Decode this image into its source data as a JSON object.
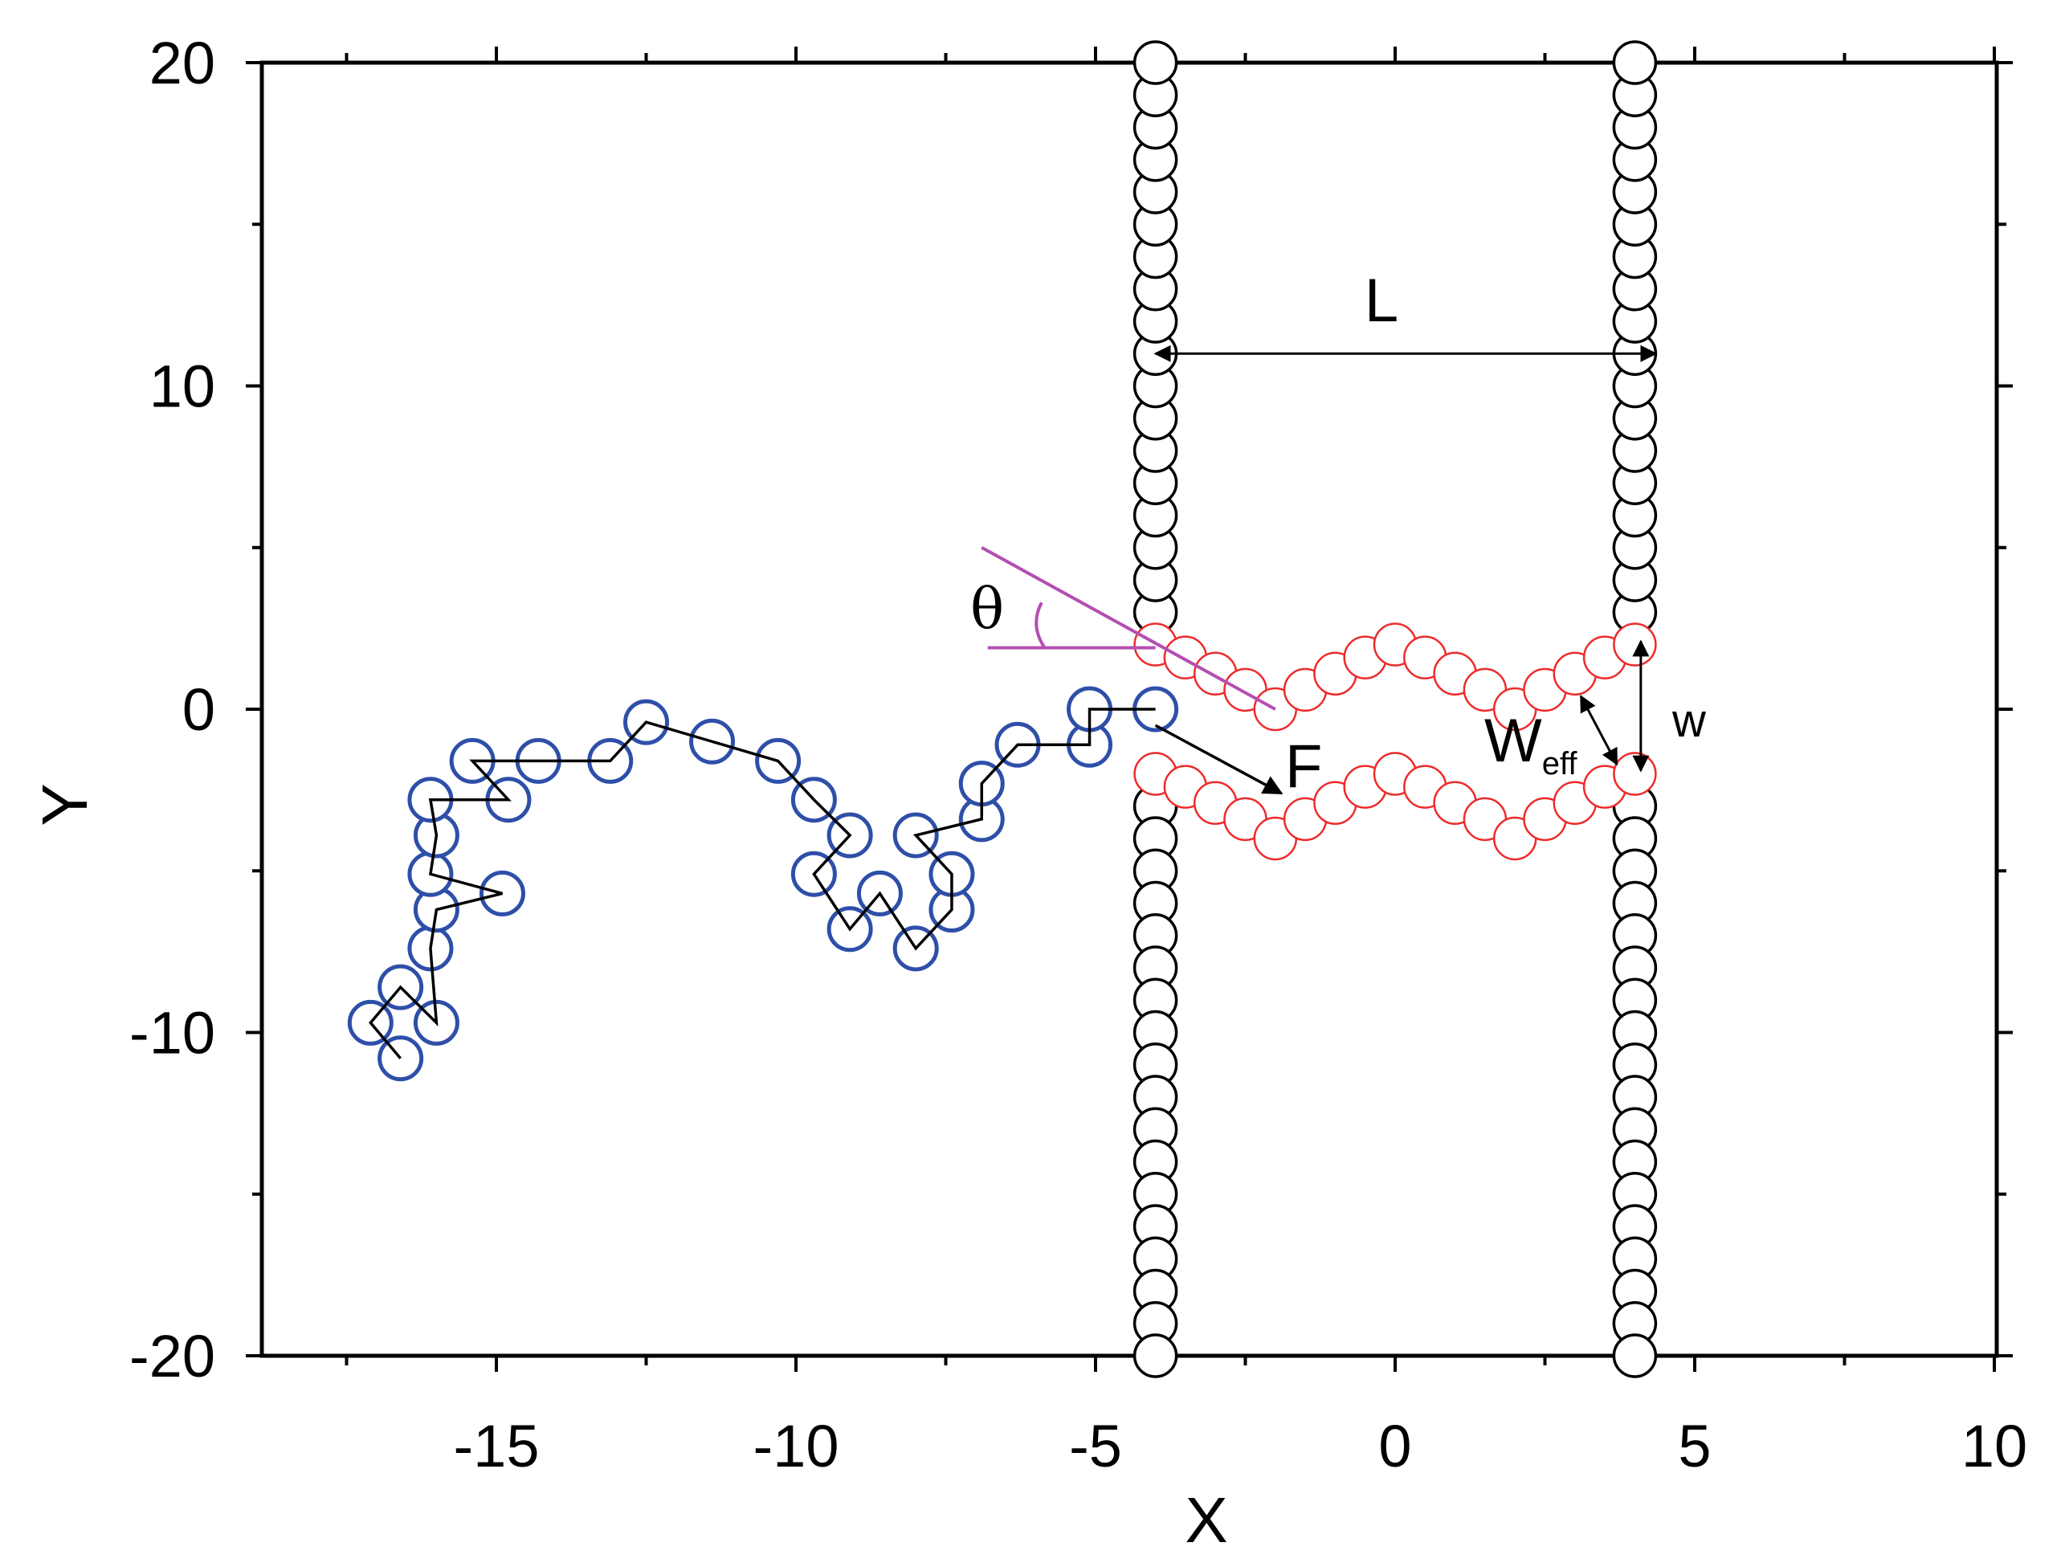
{
  "chart_data": {
    "type": "scatter",
    "xlabel": "X",
    "ylabel": "Y",
    "xlim": [
      -19,
      10
    ],
    "ylim": [
      -20,
      20
    ],
    "x_ticks": [
      "-15",
      "-10",
      "-5",
      "0",
      "5",
      "10"
    ],
    "y_ticks": [
      "20",
      "10",
      "0",
      "-10",
      "-20"
    ],
    "x_tick_values": [
      -15,
      -10,
      -5,
      0,
      5,
      10
    ],
    "y_tick_values": [
      20,
      10,
      0,
      -10,
      -20
    ],
    "grid": false,
    "colors": {
      "polymer": "#2e4fa8",
      "channel": "#ee2a2a",
      "wall": "#000000",
      "angle": "#b44fb0"
    },
    "walls": {
      "left_x": -4,
      "right_x": 4,
      "upper_y": [
        3,
        4,
        5,
        6,
        7,
        8,
        9,
        10,
        11,
        12,
        13,
        14,
        15,
        16,
        17,
        18,
        19,
        20
      ],
      "lower_y": [
        -3,
        -4,
        -5,
        -6,
        -7,
        -8,
        -9,
        -10,
        -11,
        -12,
        -13,
        -14,
        -15,
        -16,
        -17,
        -18,
        -19,
        -20
      ]
    },
    "series": [
      {
        "points": [
          [
            -16.6,
            -10.8
          ],
          [
            -17.1,
            -9.7
          ],
          [
            -16.6,
            -8.6
          ],
          [
            -16.0,
            -9.7
          ],
          [
            -16.1,
            -7.4
          ],
          [
            -16.0,
            -6.2
          ],
          [
            -14.9,
            -5.7
          ],
          [
            -16.1,
            -5.1
          ],
          [
            -16.0,
            -3.9
          ],
          [
            -16.1,
            -2.8
          ],
          [
            -14.8,
            -2.8
          ],
          [
            -15.4,
            -1.6
          ],
          [
            -14.3,
            -1.6
          ],
          [
            -13.1,
            -1.6
          ],
          [
            -12.5,
            -0.4
          ],
          [
            -11.4,
            -1.0
          ],
          [
            -10.3,
            -1.6
          ],
          [
            -9.7,
            -2.8
          ],
          [
            -9.1,
            -3.9
          ],
          [
            -9.7,
            -5.1
          ],
          [
            -9.1,
            -6.8
          ],
          [
            -8.6,
            -5.7
          ],
          [
            -8.0,
            -7.4
          ],
          [
            -7.4,
            -6.2
          ],
          [
            -7.4,
            -5.1
          ],
          [
            -8.0,
            -3.9
          ],
          [
            -6.9,
            -3.4
          ],
          [
            -6.9,
            -2.3
          ],
          [
            -6.3,
            -1.1
          ],
          [
            -5.1,
            -1.1
          ],
          [
            -5.1,
            0.0
          ],
          [
            -4.0,
            0.0
          ]
        ]
      },
      {
        "upper": [
          [
            -4.0,
            2.0
          ],
          [
            -3.5,
            1.6
          ],
          [
            -3.0,
            1.1
          ],
          [
            -2.5,
            0.6
          ],
          [
            -2.0,
            0.0
          ],
          [
            -1.5,
            0.6
          ],
          [
            -1.0,
            1.1
          ],
          [
            -0.5,
            1.6
          ],
          [
            0.0,
            2.0
          ],
          [
            0.5,
            1.6
          ],
          [
            1.0,
            1.1
          ],
          [
            1.5,
            0.6
          ],
          [
            2.0,
            0.0
          ],
          [
            2.5,
            0.6
          ],
          [
            3.0,
            1.1
          ],
          [
            3.5,
            1.6
          ],
          [
            4.0,
            2.0
          ]
        ],
        "lower": [
          [
            -4.0,
            -2.0
          ],
          [
            -3.5,
            -2.4
          ],
          [
            -3.0,
            -2.9
          ],
          [
            -2.5,
            -3.4
          ],
          [
            -2.0,
            -4.0
          ],
          [
            -1.5,
            -3.4
          ],
          [
            -1.0,
            -2.9
          ],
          [
            -0.5,
            -2.4
          ],
          [
            0.0,
            -2.0
          ],
          [
            0.5,
            -2.4
          ],
          [
            1.0,
            -2.9
          ],
          [
            1.5,
            -3.4
          ],
          [
            2.0,
            -4.0
          ],
          [
            2.5,
            -3.4
          ],
          [
            3.0,
            -2.9
          ],
          [
            3.5,
            -2.4
          ],
          [
            4.0,
            -2.0
          ]
        ]
      }
    ],
    "annotations": {
      "L": "L",
      "F": "F",
      "theta": "θ",
      "w": "w",
      "w_eff_base": "W",
      "w_eff_sub": "eff"
    }
  }
}
